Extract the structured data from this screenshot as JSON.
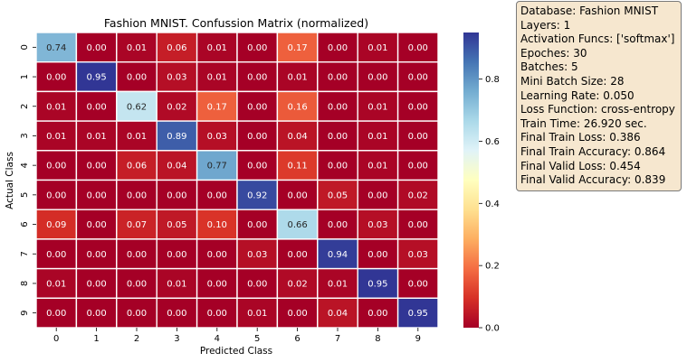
{
  "chart_data": {
    "type": "heatmap",
    "title": "Fashion MNIST. Confussion Matrix (normalized)",
    "xlabel": "Predicted Class",
    "ylabel": "Actual Class",
    "x_ticks": [
      "0",
      "1",
      "2",
      "3",
      "4",
      "5",
      "6",
      "7",
      "8",
      "9"
    ],
    "y_ticks": [
      "0",
      "1",
      "2",
      "3",
      "4",
      "5",
      "6",
      "7",
      "8",
      "9"
    ],
    "colormap": "RdYlBu",
    "colorbar_range": [
      0.0,
      0.95
    ],
    "colorbar_ticks": [
      "0.0",
      "0.2",
      "0.4",
      "0.6",
      "0.8"
    ],
    "colorbar_values": [
      0.0,
      0.2,
      0.4,
      0.6,
      0.8
    ],
    "values": [
      [
        0.74,
        0.0,
        0.01,
        0.06,
        0.01,
        0.0,
        0.17,
        0.0,
        0.01,
        0.0
      ],
      [
        0.0,
        0.95,
        0.0,
        0.03,
        0.01,
        0.0,
        0.01,
        0.0,
        0.0,
        0.0
      ],
      [
        0.01,
        0.0,
        0.62,
        0.02,
        0.17,
        0.0,
        0.16,
        0.0,
        0.01,
        0.0
      ],
      [
        0.01,
        0.01,
        0.01,
        0.89,
        0.03,
        0.0,
        0.04,
        0.0,
        0.01,
        0.0
      ],
      [
        0.0,
        0.0,
        0.06,
        0.04,
        0.77,
        0.0,
        0.11,
        0.0,
        0.01,
        0.0
      ],
      [
        0.0,
        0.0,
        0.0,
        0.0,
        0.0,
        0.92,
        0.0,
        0.05,
        0.0,
        0.02
      ],
      [
        0.09,
        0.0,
        0.07,
        0.05,
        0.1,
        0.0,
        0.66,
        0.0,
        0.03,
        0.0
      ],
      [
        0.0,
        0.0,
        0.0,
        0.0,
        0.0,
        0.03,
        0.0,
        0.94,
        0.0,
        0.03
      ],
      [
        0.01,
        0.0,
        0.0,
        0.01,
        0.0,
        0.0,
        0.02,
        0.01,
        0.95,
        0.0
      ],
      [
        0.0,
        0.0,
        0.0,
        0.0,
        0.0,
        0.01,
        0.0,
        0.04,
        0.0,
        0.95
      ]
    ]
  },
  "info": [
    "Database: Fashion MNIST",
    "Layers: 1",
    "Activation Funcs: ['softmax']",
    "Epoches: 30",
    "Batches: 5",
    "Mini Batch Size: 28",
    "Learning Rate: 0.050",
    "Loss Function: cross-entropy",
    "Train Time: 26.920 sec.",
    "Final Train Loss: 0.386",
    "Final Train Accuracy: 0.864",
    "Final Valid Loss: 0.454",
    "Final Valid Accuracy: 0.839"
  ]
}
